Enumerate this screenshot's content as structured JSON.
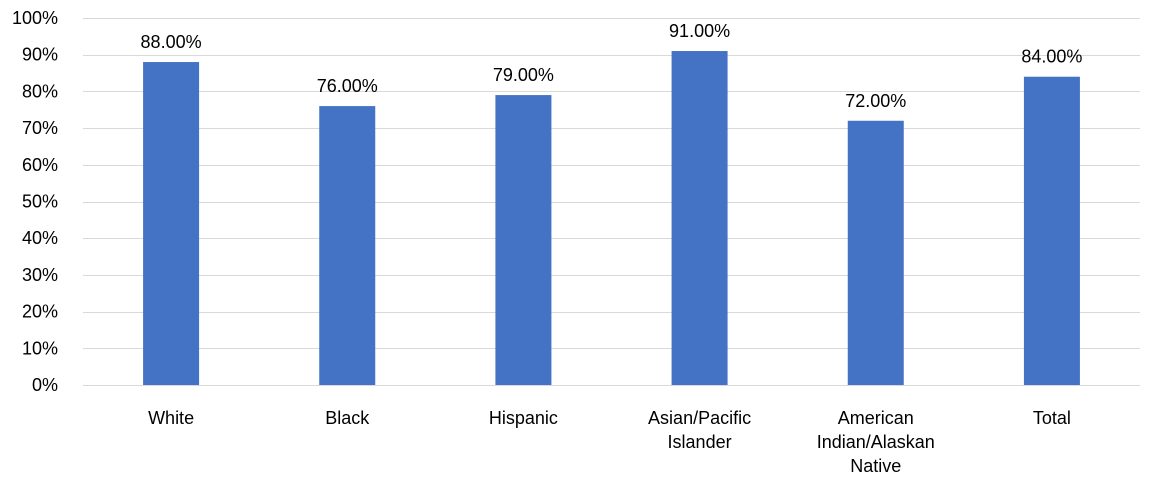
{
  "chart_data": {
    "type": "bar",
    "title": "",
    "xlabel": "",
    "ylabel": "",
    "categories": [
      [
        "White"
      ],
      [
        "Black"
      ],
      [
        "Hispanic"
      ],
      [
        "Asian/Pacific",
        "Islander"
      ],
      [
        "American",
        "Indian/Alaskan",
        "Native"
      ],
      [
        "Total"
      ]
    ],
    "values": [
      88.0,
      76.0,
      79.0,
      91.0,
      72.0,
      84.0
    ],
    "data_labels": [
      "88.00%",
      "76.00%",
      "79.00%",
      "91.00%",
      "72.00%",
      "84.00%"
    ],
    "ylim": [
      0,
      100
    ],
    "y_ticks": [
      0,
      10,
      20,
      30,
      40,
      50,
      60,
      70,
      80,
      90,
      100
    ],
    "y_tick_labels": [
      "0%",
      "10%",
      "20%",
      "30%",
      "40%",
      "50%",
      "60%",
      "70%",
      "80%",
      "90%",
      "100%"
    ],
    "grid": true,
    "legend": "none",
    "bar_color": "#4472c4",
    "grid_color": "#d9d9d9"
  }
}
